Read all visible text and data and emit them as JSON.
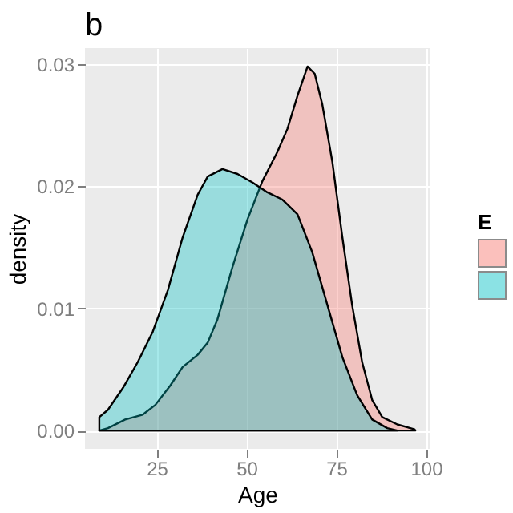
{
  "chart_data": {
    "type": "area",
    "title": "b",
    "xlabel": "Age",
    "ylabel": "density",
    "legend_title": "E",
    "grid": true,
    "xlim": [
      5,
      101
    ],
    "ylim": [
      -0.0015,
      0.0313
    ],
    "xticks": [
      25,
      50,
      75,
      100
    ],
    "yticks": [
      {
        "value": 0,
        "label": "0.00"
      },
      {
        "value": 0.01,
        "label": "0.01"
      },
      {
        "value": 0.02,
        "label": "0.02"
      },
      {
        "value": 0.03,
        "label": "0.03"
      }
    ],
    "series": [
      {
        "color": "#f8766d",
        "x": [
          9,
          11.4,
          16.2,
          21.1,
          24.6,
          28.8,
          32.2,
          36.4,
          39.2,
          41.9,
          46.1,
          50.3,
          54.4,
          58.6,
          61.4,
          64.2,
          67,
          69,
          71.1,
          73.9,
          76.7,
          79.4,
          82.2,
          85,
          87.8,
          92,
          96.8,
          97
        ],
        "values": [
          0,
          0.0002,
          0.0009,
          0.0013,
          0.0021,
          0.0037,
          0.0052,
          0.0062,
          0.0072,
          0.0091,
          0.0134,
          0.0173,
          0.0204,
          0.0228,
          0.0247,
          0.0274,
          0.0298,
          0.0292,
          0.0267,
          0.022,
          0.0158,
          0.0103,
          0.0056,
          0.0025,
          0.0011,
          0.0005,
          0.0001,
          0
        ]
      },
      {
        "color": "#00bfc4",
        "x": [
          9,
          9,
          11.4,
          15.6,
          19.7,
          23.9,
          28.1,
          32.2,
          36.4,
          39.2,
          43.3,
          47.5,
          51.7,
          55.8,
          60,
          64.2,
          68.3,
          72.5,
          76.7,
          80.8,
          85,
          89.2,
          92
        ],
        "values": [
          0,
          0.0011,
          0.0017,
          0.0035,
          0.0056,
          0.0081,
          0.0115,
          0.0158,
          0.0193,
          0.0208,
          0.0214,
          0.021,
          0.0203,
          0.0195,
          0.0189,
          0.0177,
          0.0146,
          0.0103,
          0.006,
          0.0029,
          0.0009,
          0.0002,
          0
        ]
      }
    ]
  }
}
